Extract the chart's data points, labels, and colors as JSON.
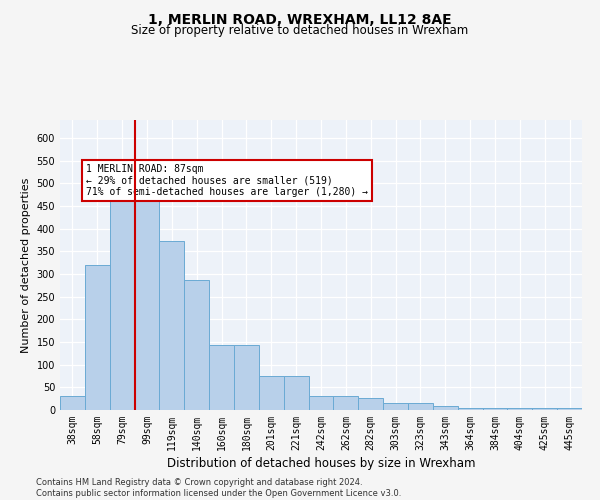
{
  "title": "1, MERLIN ROAD, WREXHAM, LL12 8AE",
  "subtitle": "Size of property relative to detached houses in Wrexham",
  "xlabel": "Distribution of detached houses by size in Wrexham",
  "ylabel": "Number of detached properties",
  "categories": [
    "38sqm",
    "58sqm",
    "79sqm",
    "99sqm",
    "119sqm",
    "140sqm",
    "160sqm",
    "180sqm",
    "201sqm",
    "221sqm",
    "242sqm",
    "262sqm",
    "282sqm",
    "303sqm",
    "323sqm",
    "343sqm",
    "364sqm",
    "384sqm",
    "404sqm",
    "425sqm",
    "445sqm"
  ],
  "values": [
    30,
    320,
    483,
    483,
    373,
    288,
    143,
    143,
    75,
    75,
    30,
    30,
    27,
    15,
    15,
    8,
    5,
    5,
    5,
    5,
    5
  ],
  "bar_color": "#b8d0ea",
  "bar_edge_color": "#6aaad4",
  "red_line_color": "#cc0000",
  "red_line_x": 2.5,
  "annotation_text": "1 MERLIN ROAD: 87sqm\n← 29% of detached houses are smaller (519)\n71% of semi-detached houses are larger (1,280) →",
  "annotation_box_color": "#ffffff",
  "annotation_box_edge": "#cc0000",
  "ylim": [
    0,
    640
  ],
  "yticks": [
    0,
    50,
    100,
    150,
    200,
    250,
    300,
    350,
    400,
    450,
    500,
    550,
    600
  ],
  "footer": "Contains HM Land Registry data © Crown copyright and database right 2024.\nContains public sector information licensed under the Open Government Licence v3.0.",
  "bg_color": "#edf2f9",
  "grid_color": "#ffffff",
  "fig_facecolor": "#f5f5f5",
  "title_fontsize": 10,
  "subtitle_fontsize": 8.5,
  "axis_label_fontsize": 8,
  "tick_fontsize": 7,
  "footer_fontsize": 6
}
